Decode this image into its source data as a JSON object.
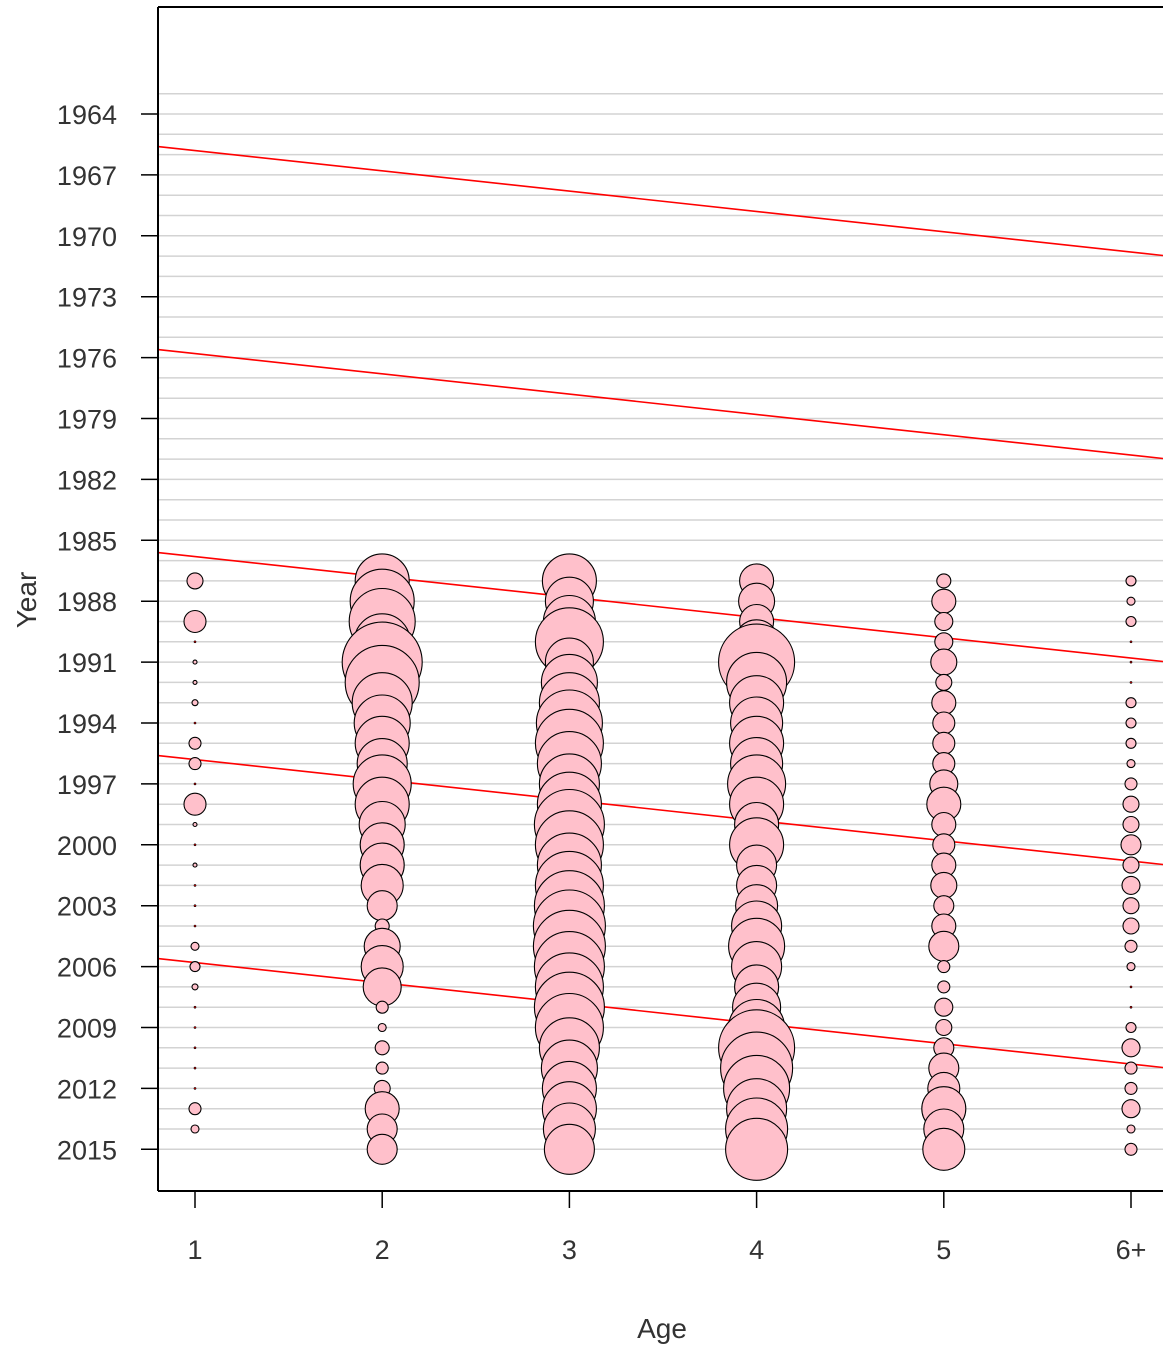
{
  "chart_data": {
    "type": "scatter",
    "subtype": "bubble",
    "xlabel": "Age",
    "ylabel": "Year",
    "x_categories": [
      "1",
      "2",
      "3",
      "4",
      "5",
      "6+"
    ],
    "y_ticks": [
      1964,
      1967,
      1970,
      1973,
      1976,
      1979,
      1982,
      1985,
      1988,
      1991,
      1994,
      1997,
      2000,
      2003,
      2006,
      2009,
      2012,
      2015
    ],
    "ylim": [
      1961.5,
      1917
    ],
    "y_axis_reversed": true,
    "y_display_min": 1963,
    "y_display_max": 2015,
    "grid": "horizontal lines at every year",
    "series": [
      {
        "category": "1",
        "years": [
          1987,
          1989,
          1990,
          1991,
          1992,
          1993,
          1994,
          1995,
          1996,
          1997,
          1998,
          1999,
          2000,
          2001,
          2002,
          2003,
          2004,
          2005,
          2006,
          2007,
          2008,
          2009,
          2010,
          2011,
          2012,
          2013,
          2014
        ],
        "radii": [
          8,
          11,
          1,
          2,
          2,
          3,
          1,
          6,
          6,
          1,
          11,
          2,
          1,
          2,
          1,
          1,
          1,
          4,
          5,
          3,
          1,
          1,
          1,
          1,
          1,
          6,
          4
        ]
      },
      {
        "category": "2",
        "years": [
          1987,
          1988,
          1989,
          1990,
          1991,
          1992,
          1993,
          1994,
          1995,
          1996,
          1997,
          1998,
          1999,
          2000,
          2001,
          2002,
          2003,
          2004,
          2005,
          2006,
          2007,
          2008,
          2009,
          2010,
          2011,
          2012,
          2013,
          2014,
          2015
        ],
        "radii": [
          27,
          32,
          33,
          28,
          40,
          37,
          30,
          28,
          27,
          25,
          29,
          27,
          23,
          22,
          22,
          21,
          15,
          7,
          18,
          21,
          19,
          6,
          4,
          7,
          6,
          8,
          17,
          15,
          15
        ]
      },
      {
        "category": "3",
        "years": [
          1987,
          1988,
          1989,
          1990,
          1991,
          1992,
          1993,
          1994,
          1995,
          1996,
          1997,
          1998,
          1999,
          2000,
          2001,
          2002,
          2003,
          2004,
          2005,
          2006,
          2007,
          2008,
          2009,
          2010,
          2011,
          2012,
          2013,
          2014,
          2015
        ],
        "radii": [
          27,
          24,
          26,
          34,
          24,
          28,
          30,
          33,
          34,
          32,
          30,
          32,
          35,
          34,
          32,
          34,
          35,
          36,
          36,
          35,
          34,
          35,
          34,
          30,
          28,
          27,
          27,
          26,
          25
        ]
      },
      {
        "category": "4",
        "years": [
          1987,
          1988,
          1989,
          1990,
          1991,
          1992,
          1993,
          1994,
          1995,
          1996,
          1997,
          1998,
          1999,
          2000,
          2001,
          2002,
          2003,
          2004,
          2005,
          2006,
          2007,
          2008,
          2009,
          2010,
          2011,
          2012,
          2013,
          2014,
          2015
        ],
        "radii": [
          17,
          18,
          17,
          22,
          38,
          30,
          27,
          26,
          27,
          26,
          29,
          27,
          22,
          27,
          20,
          20,
          21,
          25,
          28,
          25,
          22,
          24,
          28,
          38,
          36,
          33,
          30,
          31,
          31
        ]
      },
      {
        "category": "5",
        "years": [
          1987,
          1988,
          1989,
          1990,
          1991,
          1992,
          1993,
          1994,
          1995,
          1996,
          1997,
          1998,
          1999,
          2000,
          2001,
          2002,
          2003,
          2004,
          2005,
          2006,
          2007,
          2008,
          2009,
          2010,
          2011,
          2012,
          2013,
          2014,
          2015
        ],
        "radii": [
          7,
          12,
          9,
          9,
          13,
          8,
          12,
          11,
          11,
          11,
          14,
          17,
          12,
          11,
          12,
          13,
          10,
          12,
          15,
          6,
          6,
          9,
          8,
          10,
          15,
          16,
          22,
          20,
          21
        ]
      },
      {
        "category": "6+",
        "years": [
          1987,
          1988,
          1989,
          1990,
          1991,
          1992,
          1993,
          1994,
          1995,
          1996,
          1997,
          1998,
          1999,
          2000,
          2001,
          2002,
          2003,
          2004,
          2005,
          2006,
          2007,
          2008,
          2009,
          2010,
          2011,
          2012,
          2013,
          2014,
          2015
        ],
        "radii": [
          5,
          4,
          5,
          1,
          1,
          1,
          5,
          5,
          5,
          4,
          6,
          8,
          8,
          10,
          8,
          9,
          8,
          8,
          6,
          4,
          1,
          1,
          5,
          9,
          6,
          6,
          9,
          4,
          6
        ]
      }
    ],
    "cohort_lines": [
      {
        "year_at_age1": 1965.8
      },
      {
        "year_at_age1": 1975.8
      },
      {
        "year_at_age1": 1985.8
      },
      {
        "year_at_age1": 1995.8
      },
      {
        "year_at_age1": 2005.8
      }
    ],
    "colors": {
      "bubble_fill": "#ffc0cb",
      "bubble_stroke": "#000000",
      "grid": "#d3d3d3",
      "cohort_line": "#ff0000",
      "axis": "#000000",
      "text": "#333333"
    }
  }
}
